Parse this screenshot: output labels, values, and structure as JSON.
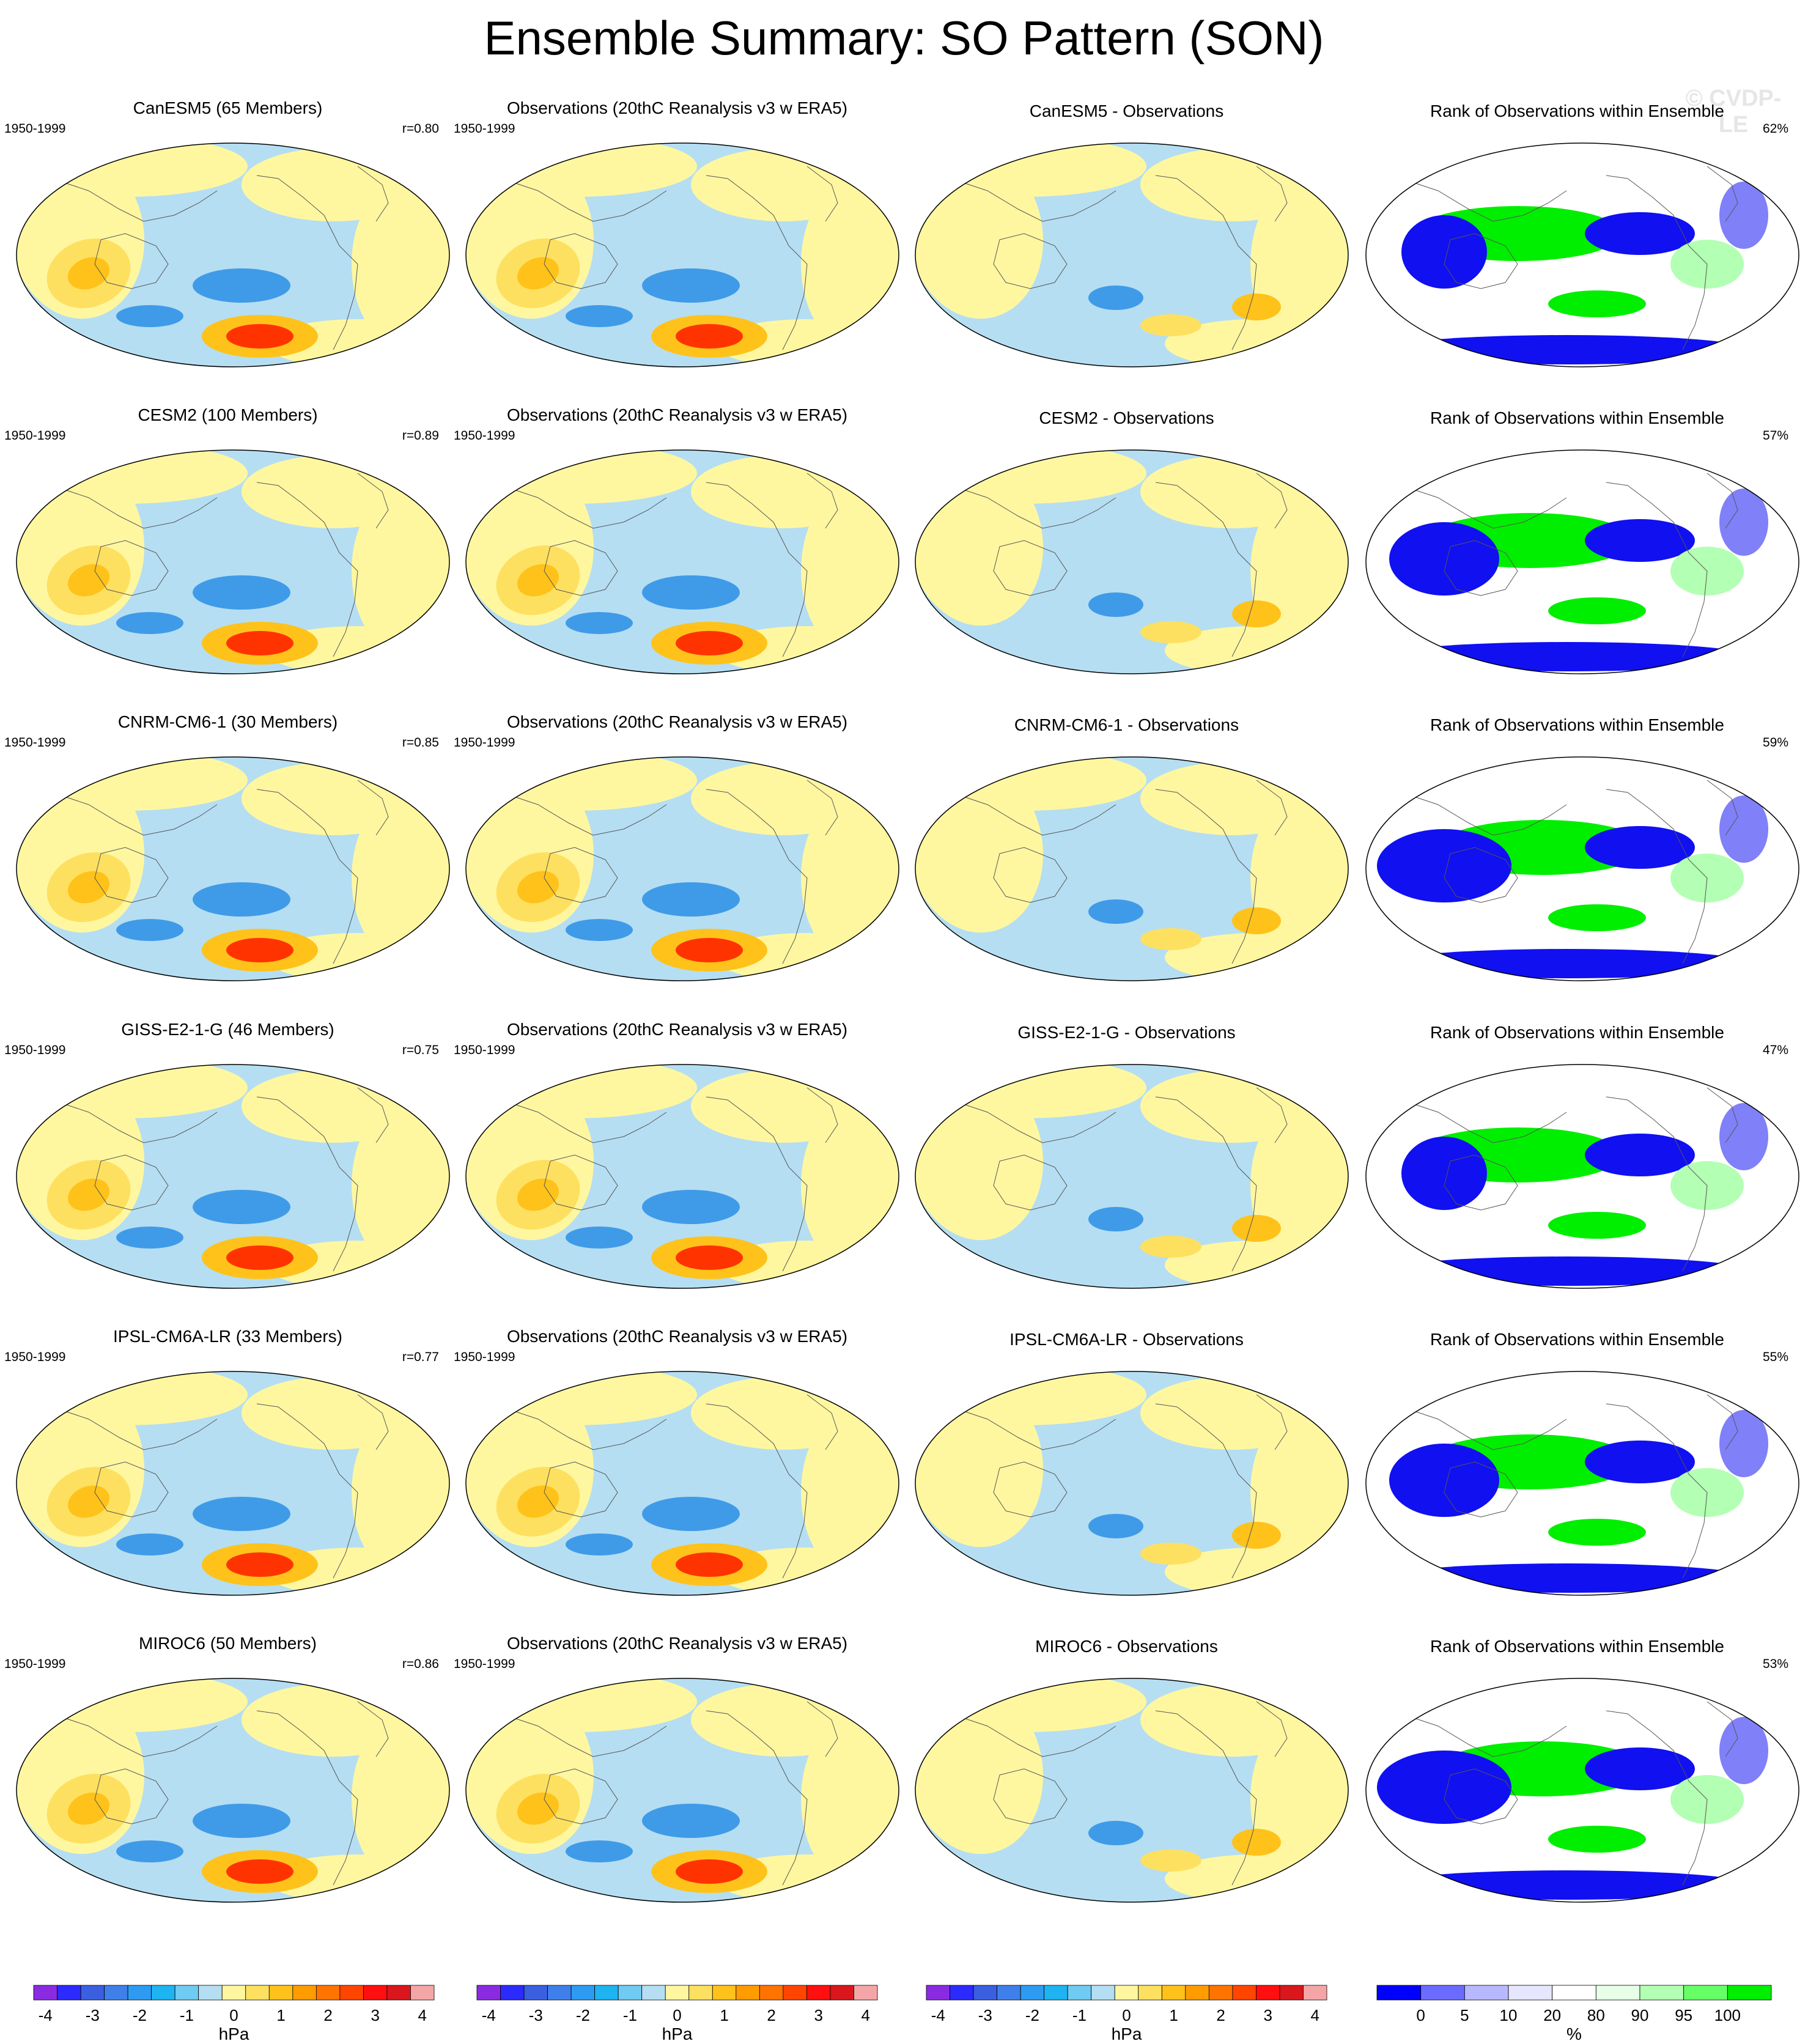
{
  "title": "Ensemble Summary: SO Pattern (SON)",
  "watermark": "© CVDP-LE",
  "rows": [
    {
      "model_title": "CanESM5 (65 Members)",
      "obs_title": "Observations (20thC Reanalysis v3 w ERA5)",
      "diff_title": "CanESM5 - Observations",
      "rank_title": "Rank of Observations within Ensemble",
      "model_period": "1950-1999",
      "obs_period": "1950-1999",
      "r": "r=0.80",
      "rank_pct": "62%"
    },
    {
      "model_title": "CESM2 (100 Members)",
      "obs_title": "Observations (20thC Reanalysis v3 w ERA5)",
      "diff_title": "CESM2 - Observations",
      "rank_title": "Rank of Observations within Ensemble",
      "model_period": "1950-1999",
      "obs_period": "1950-1999",
      "r": "r=0.89",
      "rank_pct": "57%"
    },
    {
      "model_title": "CNRM-CM6-1 (30 Members)",
      "obs_title": "Observations (20thC Reanalysis v3 w ERA5)",
      "diff_title": "CNRM-CM6-1 - Observations",
      "rank_title": "Rank of Observations within Ensemble",
      "model_period": "1950-1999",
      "obs_period": "1950-1999",
      "r": "r=0.85",
      "rank_pct": "59%"
    },
    {
      "model_title": "GISS-E2-1-G (46 Members)",
      "obs_title": "Observations (20thC Reanalysis v3 w ERA5)",
      "diff_title": "GISS-E2-1-G - Observations",
      "rank_title": "Rank of Observations within Ensemble",
      "model_period": "1950-1999",
      "obs_period": "1950-1999",
      "r": "r=0.75",
      "rank_pct": "47%"
    },
    {
      "model_title": "IPSL-CM6A-LR (33 Members)",
      "obs_title": "Observations (20thC Reanalysis v3 w ERA5)",
      "diff_title": "IPSL-CM6A-LR - Observations",
      "rank_title": "Rank of Observations within Ensemble",
      "model_period": "1950-1999",
      "obs_period": "1950-1999",
      "r": "r=0.77",
      "rank_pct": "55%"
    },
    {
      "model_title": "MIROC6 (50 Members)",
      "obs_title": "Observations (20thC Reanalysis v3 w ERA5)",
      "diff_title": "MIROC6 - Observations",
      "rank_title": "Rank of Observations within Ensemble",
      "model_period": "1950-1999",
      "obs_period": "1950-1999",
      "r": "r=0.86",
      "rank_pct": "53%"
    }
  ],
  "colorbars": {
    "hpa": {
      "unit": "hPa",
      "tick_labels": [
        "-4",
        "-3",
        "-2",
        "-1",
        "0",
        "1",
        "2",
        "3",
        "4"
      ],
      "colors": [
        "#8a2be2",
        "#2b2bff",
        "#3a5fe0",
        "#3f7fea",
        "#2e9bf2",
        "#1eb4f2",
        "#6fcbf2",
        "#b5def2",
        "#fff7a0",
        "#fee060",
        "#ffc21a",
        "#ff9c00",
        "#ff7400",
        "#ff4500",
        "#ff0f0f",
        "#d9171c",
        "#f4a6a6"
      ]
    },
    "rank": {
      "unit": "%",
      "tick_labels": [
        "0",
        "5",
        "10",
        "20",
        "80",
        "90",
        "95",
        "100"
      ],
      "colors": [
        "#0000ff",
        "#6b6bff",
        "#b8b8ff",
        "#e6e6ff",
        "#ffffff",
        "#e6ffe6",
        "#b3ffb3",
        "#66ff66",
        "#00ee00"
      ]
    }
  },
  "pattern_palette": {
    "ocean_blue": "#b5def2",
    "land_yellow": "#fff7a0",
    "orange_light": "#fee060",
    "orange": "#ffc21a",
    "red_core": "#ff3300",
    "deep_blue": "#3f9be8",
    "coast": "#555555"
  },
  "rank_palette": {
    "blue": "#1010f0",
    "blue_light": "#8080f8",
    "green": "#00ee00",
    "green_light": "#b3ffb3"
  }
}
